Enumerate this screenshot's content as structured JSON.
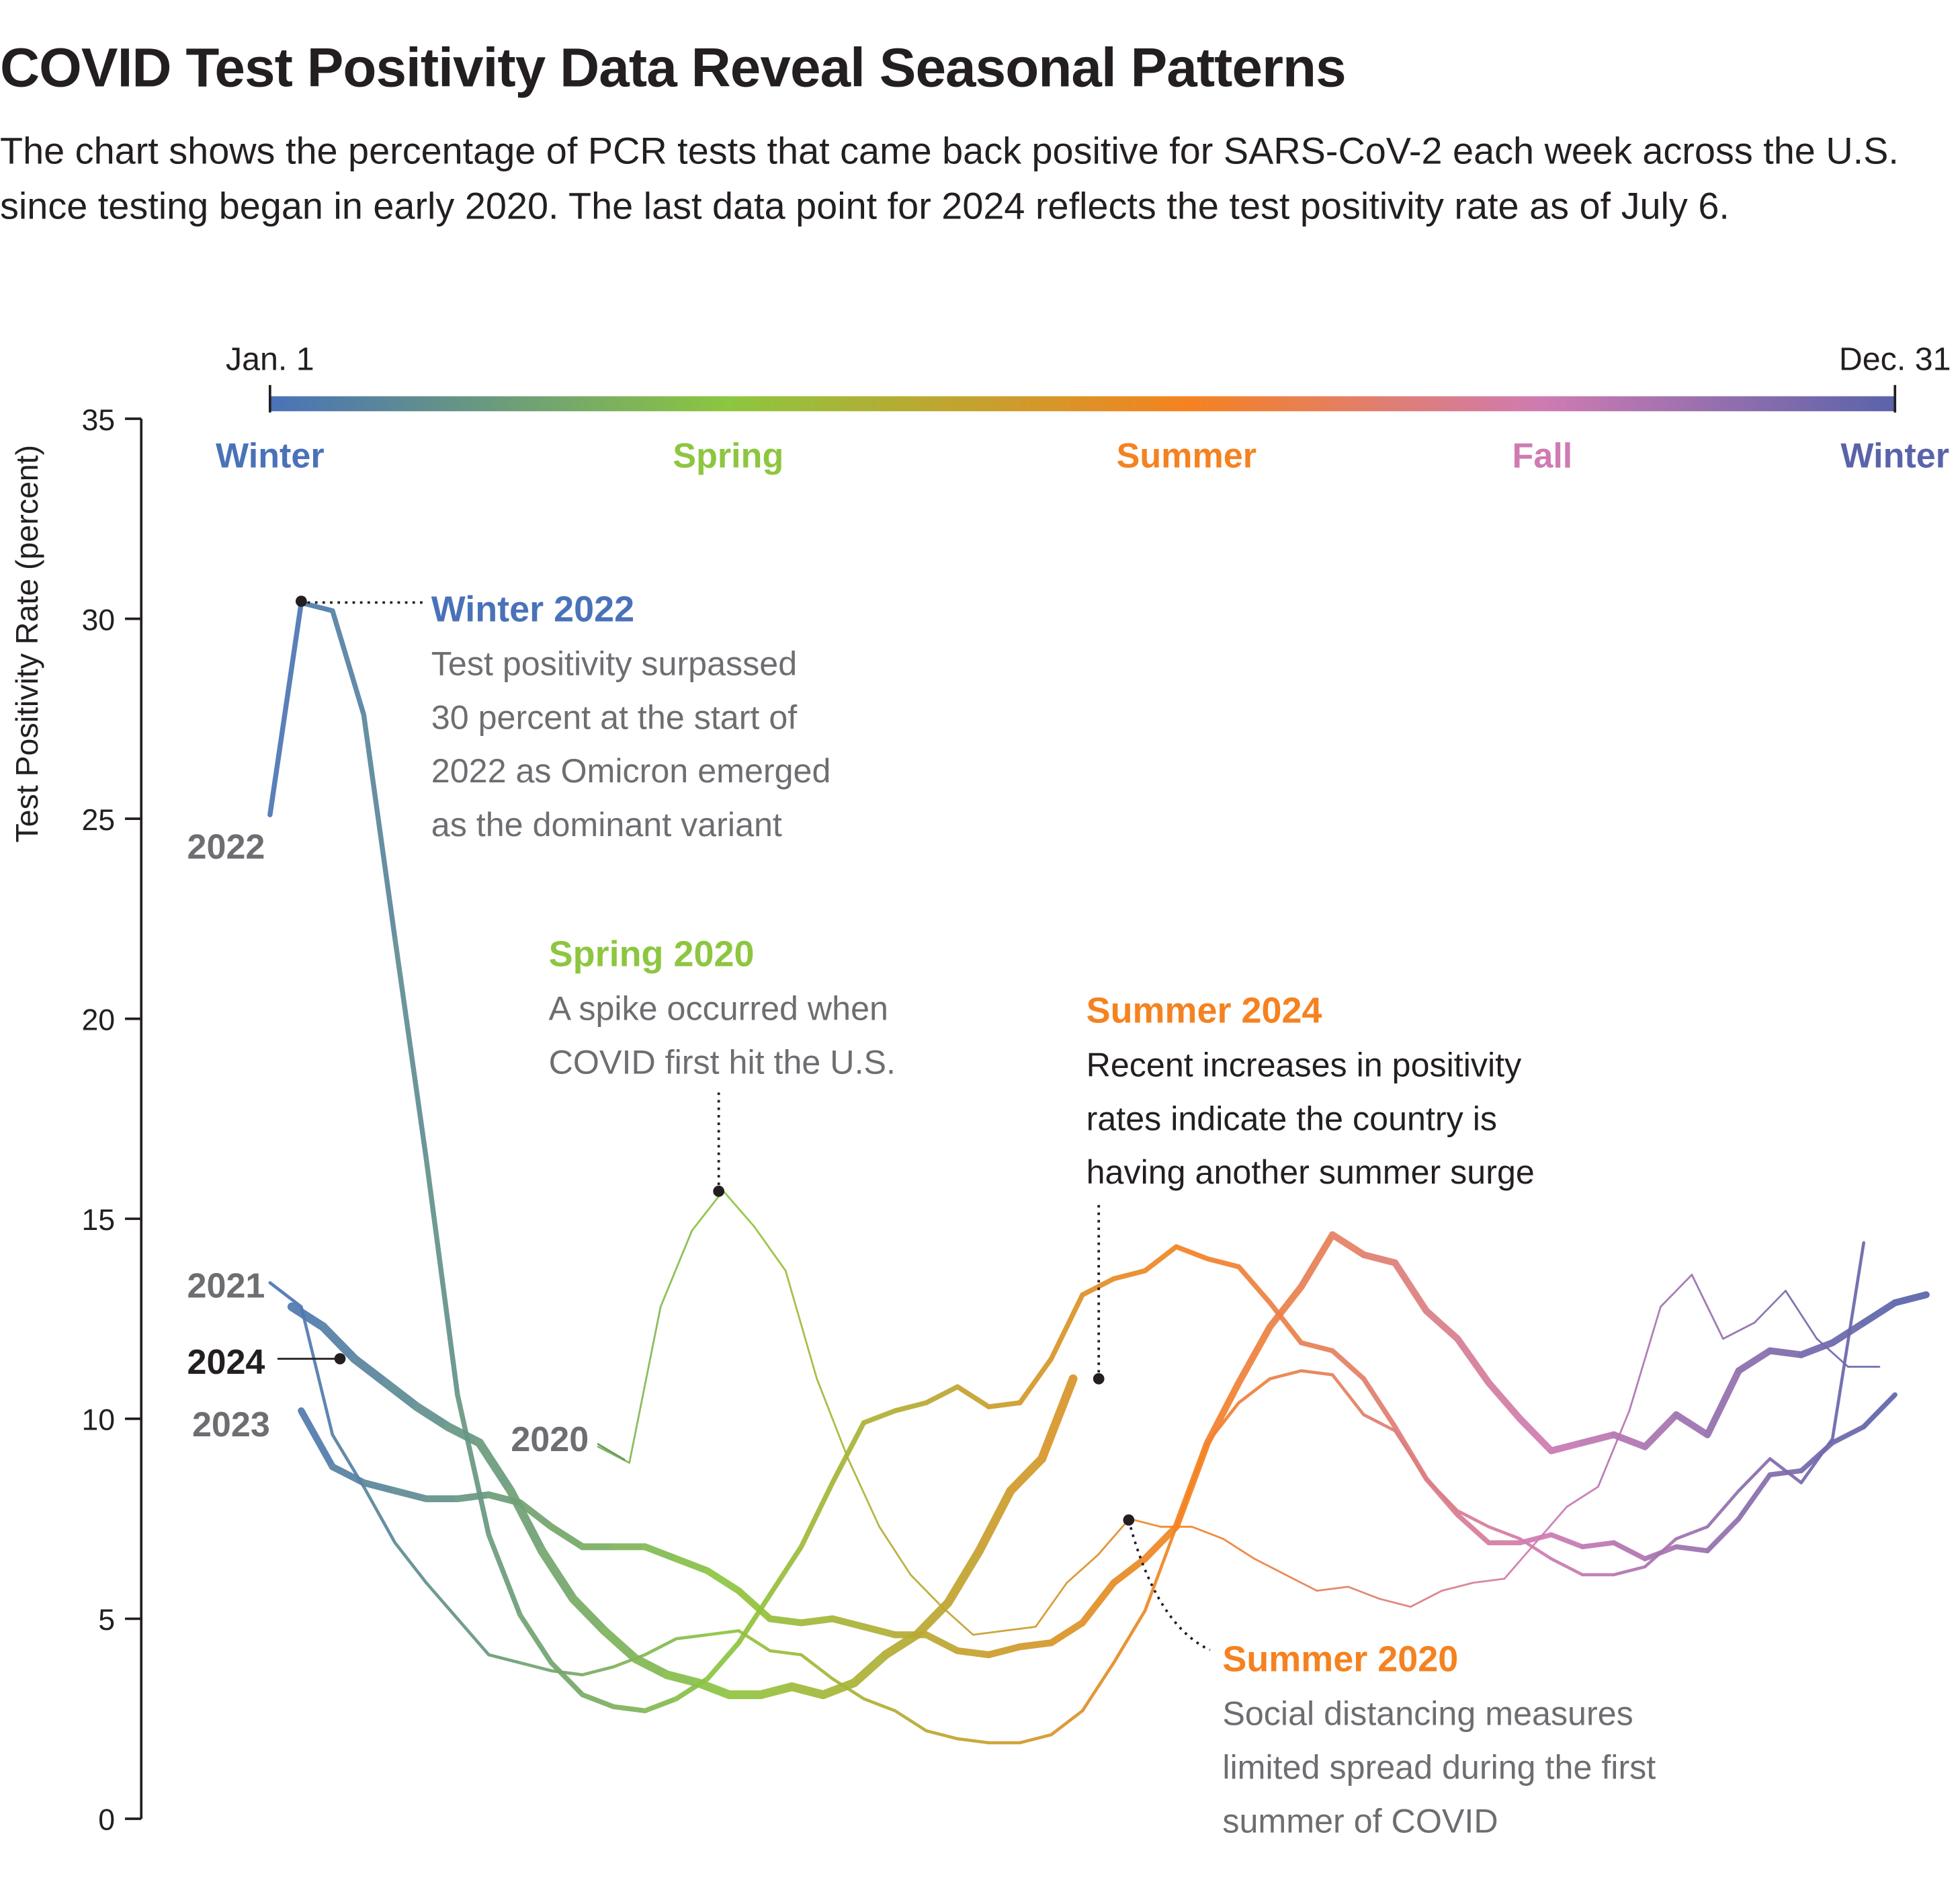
{
  "title": "COVID Test Positivity Data Reveal Seasonal Patterns",
  "subtitle": "The chart shows the percentage of PCR tests that came back positive for SARS-CoV-2 each week across the U.S. since testing began in early 2020. The last data point for 2024 reflects the test positivity rate as of July 6.",
  "chart_data": {
    "type": "line",
    "ylabel": "Test Positivity Rate (percent)",
    "ylim": [
      0,
      35
    ],
    "yticks": [
      "0",
      "5",
      "10",
      "15",
      "20",
      "25",
      "30",
      "35"
    ],
    "xlim": [
      0,
      52
    ],
    "x_unit": "week of year",
    "timeline": {
      "start_label": "Jan. 1",
      "end_label": "Dec. 31"
    },
    "seasons": [
      {
        "label": "Winter",
        "color": "#4a72b8",
        "pos": 0
      },
      {
        "label": "Spring",
        "color": "#8dc63f",
        "pos": 0.282
      },
      {
        "label": "Summer",
        "color": "#f58220",
        "pos": 0.564
      },
      {
        "label": "Fall",
        "color": "#cf7bb2",
        "pos": 0.783
      },
      {
        "label": "Winter",
        "color": "#5a63aa",
        "pos": 1
      }
    ],
    "grid": false,
    "series": [
      {
        "name": "2020",
        "start_week": 10.5,
        "width": 1.5,
        "values": [
          9.3,
          8.9,
          12.8,
          14.7,
          15.7,
          14.8,
          13.7,
          11.0,
          9.0,
          7.3,
          6.1,
          5.3,
          4.6,
          4.7,
          4.8,
          5.9,
          6.6,
          7.5,
          7.3,
          7.3,
          7.0,
          6.5,
          6.1,
          5.7,
          5.8,
          5.5,
          5.3,
          5.7,
          5.9,
          6.0,
          6.9,
          7.8,
          8.3,
          10.2,
          12.8,
          13.6,
          12.0,
          12.4,
          13.2,
          12.0,
          11.3,
          11.3
        ]
      },
      {
        "name": "2021",
        "start_week": 0,
        "width": 2.5,
        "values": [
          13.4,
          12.8,
          9.6,
          8.3,
          6.9,
          5.9,
          5.0,
          4.1,
          3.9,
          3.7,
          3.6,
          3.8,
          4.1,
          4.5,
          4.6,
          4.7,
          4.2,
          4.1,
          3.5,
          3.0,
          2.7,
          2.2,
          2.0,
          1.9,
          1.9,
          2.1,
          2.7,
          3.9,
          5.2,
          7.3,
          9.4,
          10.4,
          11.0,
          11.2,
          11.1,
          10.1,
          9.7,
          8.5,
          7.7,
          7.3,
          7.0,
          6.5,
          6.1,
          6.1,
          6.3,
          7.0,
          7.3,
          8.2,
          9.0,
          8.4,
          9.5,
          14.4
        ]
      },
      {
        "name": "2022",
        "start_week": 0,
        "width": 4,
        "values": [
          25.1,
          30.4,
          30.2,
          27.6,
          22.0,
          16.5,
          10.6,
          7.1,
          5.1,
          3.9,
          3.1,
          2.8,
          2.7,
          3.0,
          3.5,
          4.4,
          5.6,
          6.8,
          8.4,
          9.9,
          10.2,
          10.4,
          10.8,
          10.3,
          10.4,
          11.5,
          13.1,
          13.5,
          13.7,
          14.3,
          14.0,
          13.8,
          12.9,
          11.9,
          11.7,
          11.0,
          9.8,
          8.5,
          7.6,
          6.9,
          6.9,
          7.1,
          6.8,
          6.9,
          6.5,
          6.8,
          6.7,
          7.5,
          8.6,
          8.7,
          9.4,
          9.8,
          10.6
        ]
      },
      {
        "name": "2023",
        "start_week": 1,
        "width": 5.5,
        "values": [
          10.2,
          8.8,
          8.4,
          8.2,
          8.0,
          8.0,
          8.1,
          7.9,
          7.3,
          6.8,
          6.8,
          6.8,
          6.5,
          6.2,
          5.7,
          5.0,
          4.9,
          5.0,
          4.8,
          4.6,
          4.6,
          4.2,
          4.1,
          4.3,
          4.4,
          4.9,
          5.9,
          6.5,
          7.3,
          9.4,
          10.9,
          12.3,
          13.3,
          14.6,
          14.1,
          13.9,
          12.7,
          12.0,
          10.9,
          10.0,
          9.2,
          9.4,
          9.6,
          9.3,
          10.1,
          9.6,
          11.2,
          11.7,
          11.6,
          11.9,
          12.4,
          12.9,
          13.1
        ]
      },
      {
        "name": "2024",
        "start_week": 0.7,
        "width": 7,
        "values": [
          12.8,
          12.3,
          11.5,
          10.9,
          10.3,
          9.8,
          9.4,
          8.2,
          6.7,
          5.5,
          4.7,
          4.0,
          3.6,
          3.4,
          3.1,
          3.1,
          3.3,
          3.1,
          3.4,
          4.1,
          4.6,
          5.4,
          6.7,
          8.2,
          9.0,
          11.0
        ]
      }
    ],
    "year_labels": [
      "2022",
      "2021",
      "2024",
      "2023",
      "2020"
    ],
    "annotations": [
      {
        "title": "Winter 2022",
        "color": "#4a72b8",
        "lines": [
          "Test positivity surpassed",
          "30 percent at the start of",
          "2022 as Omicron emerged",
          "as the dominant variant"
        ]
      },
      {
        "title": "Spring 2020",
        "color": "#8dc63f",
        "lines": [
          "A spike occurred when",
          "COVID first hit the U.S."
        ]
      },
      {
        "title": "Summer 2024",
        "color": "#f58220",
        "lines": [
          "Recent increases in positivity",
          "rates indicate the country is",
          "having another summer surge"
        ]
      },
      {
        "title": "Summer 2020",
        "color": "#f58220",
        "lines": [
          "Social distancing measures",
          "limited spread during the first",
          "summer of COVID"
        ]
      }
    ]
  }
}
